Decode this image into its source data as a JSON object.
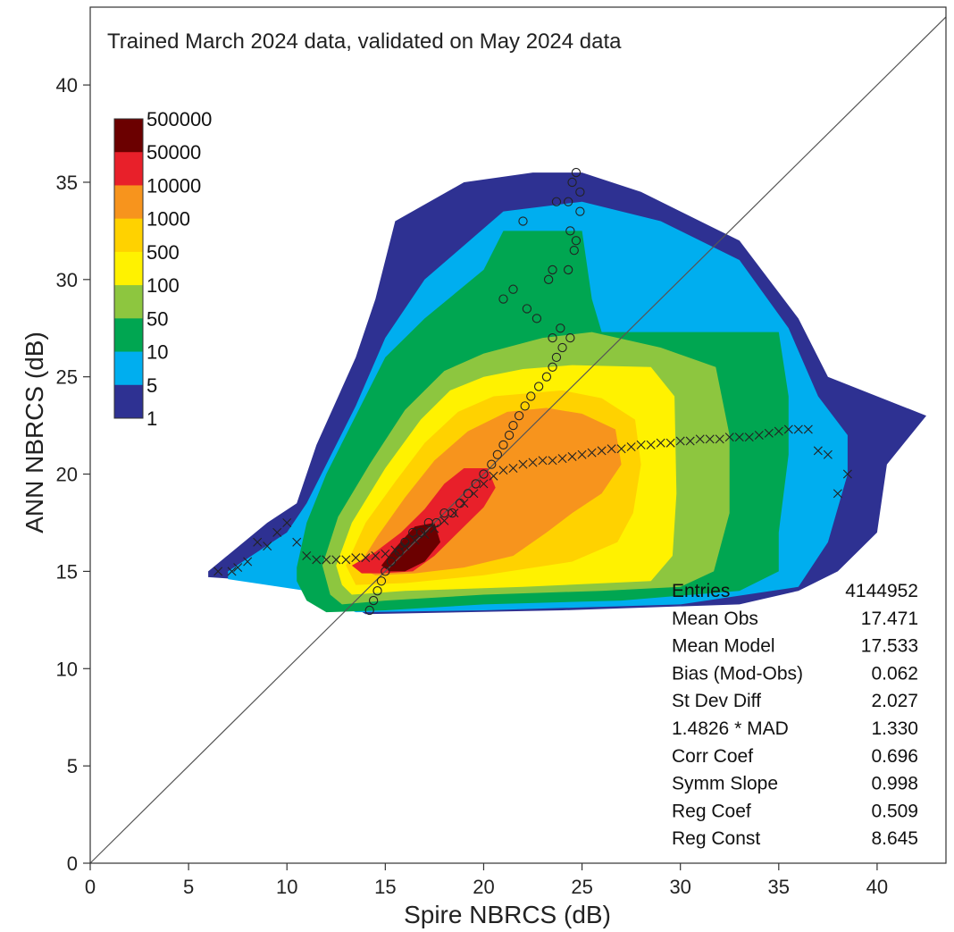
{
  "chart_data": {
    "type": "heatmap",
    "title": "Trained March 2024 data, validated on May 2024 data",
    "xlabel": "Spire NBRCS (dB)",
    "ylabel": "ANN NBRCS (dB)",
    "xlim": [
      0,
      43.5
    ],
    "ylim": [
      0,
      44
    ],
    "xticks": [
      0,
      5,
      10,
      15,
      20,
      25,
      30,
      35,
      40
    ],
    "yticks": [
      0,
      5,
      10,
      15,
      20,
      25,
      30,
      35,
      40
    ],
    "colorbar": {
      "labels": [
        "500000",
        "50000",
        "10000",
        "1000",
        "500",
        "100",
        "50",
        "10",
        "5",
        "1"
      ],
      "colors": [
        "#6b0000",
        "#e8202a",
        "#f7941d",
        "#ffd200",
        "#fff200",
        "#8dc63f",
        "#00a651",
        "#00aeef",
        "#2e3192"
      ]
    },
    "identity_line": true,
    "density_regions": [
      {
        "level": 1,
        "color": "#2e3192",
        "polygon": [
          [
            6,
            15
          ],
          [
            9,
            17.5
          ],
          [
            10.5,
            18.5
          ],
          [
            11.5,
            21.5
          ],
          [
            13.5,
            26
          ],
          [
            14.5,
            29
          ],
          [
            15.5,
            33
          ],
          [
            19,
            35
          ],
          [
            22.5,
            35.5
          ],
          [
            25,
            35.5
          ],
          [
            28,
            34.5
          ],
          [
            33,
            32
          ],
          [
            36,
            28
          ],
          [
            37.5,
            25
          ],
          [
            40,
            24
          ],
          [
            42.5,
            23
          ],
          [
            40.5,
            20.5
          ],
          [
            40,
            17
          ],
          [
            38,
            15
          ],
          [
            36,
            14
          ],
          [
            33,
            13.3
          ],
          [
            24,
            13
          ],
          [
            14,
            12.8
          ],
          [
            12,
            14
          ],
          [
            9,
            14.5
          ],
          [
            6,
            14.7
          ]
        ]
      },
      {
        "level": 5,
        "color": "#00aeef",
        "polygon": [
          [
            7,
            15
          ],
          [
            10,
            17
          ],
          [
            11,
            18.5
          ],
          [
            12,
            20.5
          ],
          [
            13.5,
            23.5
          ],
          [
            15,
            27
          ],
          [
            17,
            30
          ],
          [
            21,
            33.5
          ],
          [
            25,
            34
          ],
          [
            29,
            33
          ],
          [
            33,
            31
          ],
          [
            35.5,
            27.5
          ],
          [
            37,
            24
          ],
          [
            38.5,
            22
          ],
          [
            38.5,
            20
          ],
          [
            37.5,
            16.5
          ],
          [
            36,
            14.2
          ],
          [
            30,
            13.3
          ],
          [
            20,
            13
          ],
          [
            13.5,
            12.9
          ],
          [
            11,
            14
          ],
          [
            7,
            14.6
          ]
        ]
      },
      {
        "level": 10,
        "color": "#00a651",
        "polygon": [
          [
            10.5,
            15.2
          ],
          [
            11,
            17.5
          ],
          [
            12,
            20
          ],
          [
            13.5,
            23
          ],
          [
            15,
            26
          ],
          [
            17,
            28
          ],
          [
            20,
            30.5
          ],
          [
            21,
            32.5
          ],
          [
            25,
            32.5
          ],
          [
            25.5,
            29
          ],
          [
            26,
            27.3
          ],
          [
            30,
            27.3
          ],
          [
            35,
            27.3
          ],
          [
            35.5,
            24
          ],
          [
            35.5,
            21
          ],
          [
            35,
            17
          ],
          [
            35,
            15
          ],
          [
            33,
            14
          ],
          [
            27,
            13.5
          ],
          [
            20,
            13.3
          ],
          [
            15,
            13
          ],
          [
            12,
            12.9
          ],
          [
            11,
            13.5
          ],
          [
            10.5,
            14.5
          ]
        ]
      },
      {
        "level": 50,
        "color": "#8dc63f",
        "polygon": [
          [
            11.8,
            15.3
          ],
          [
            12.6,
            17.8
          ],
          [
            14.2,
            20.5
          ],
          [
            16,
            23.3
          ],
          [
            18,
            25.3
          ],
          [
            20,
            26.2
          ],
          [
            23,
            27
          ],
          [
            25.5,
            27.3
          ],
          [
            29,
            26.5
          ],
          [
            31.8,
            25.5
          ],
          [
            32.5,
            22
          ],
          [
            32.5,
            18
          ],
          [
            31.7,
            15
          ],
          [
            30,
            14.2
          ],
          [
            26,
            14
          ],
          [
            20,
            13.8
          ],
          [
            15,
            13.5
          ],
          [
            12.8,
            13.3
          ],
          [
            12.2,
            13.8
          ]
        ]
      },
      {
        "level": 100,
        "color": "#fff200",
        "polygon": [
          [
            12.5,
            15.3
          ],
          [
            13.3,
            17.5
          ],
          [
            15,
            20.3
          ],
          [
            16.8,
            22.8
          ],
          [
            18.3,
            24.3
          ],
          [
            20,
            25
          ],
          [
            22,
            25.4
          ],
          [
            24.5,
            25.6
          ],
          [
            28.5,
            25.5
          ],
          [
            29.7,
            24
          ],
          [
            29.8,
            19
          ],
          [
            29.6,
            15.8
          ],
          [
            28.5,
            14.5
          ],
          [
            22,
            14.2
          ],
          [
            16,
            14
          ],
          [
            13.3,
            13.8
          ],
          [
            12.8,
            14.3
          ]
        ]
      },
      {
        "level": 500,
        "color": "#ffd200",
        "polygon": [
          [
            13,
            15.3
          ],
          [
            14,
            17.5
          ],
          [
            15.5,
            19.6
          ],
          [
            17,
            21.6
          ],
          [
            18.7,
            23.2
          ],
          [
            20.5,
            24
          ],
          [
            24,
            24.3
          ],
          [
            26,
            23.9
          ],
          [
            27.7,
            22.8
          ],
          [
            28,
            20.5
          ],
          [
            27.6,
            18
          ],
          [
            26.8,
            16.5
          ],
          [
            24.5,
            15.5
          ],
          [
            20,
            14.8
          ],
          [
            16,
            14.4
          ],
          [
            13.5,
            14.3
          ]
        ]
      },
      {
        "level": 1000,
        "color": "#f7941d",
        "polygon": [
          [
            13.6,
            15.2
          ],
          [
            14.6,
            16.8
          ],
          [
            16,
            18.8
          ],
          [
            17.5,
            20.7
          ],
          [
            19.2,
            22.2
          ],
          [
            21.2,
            23.2
          ],
          [
            23.2,
            23.4
          ],
          [
            25,
            23.1
          ],
          [
            26.7,
            22.3
          ],
          [
            27,
            20.5
          ],
          [
            26,
            19
          ],
          [
            24.5,
            18
          ],
          [
            23.2,
            17
          ],
          [
            21.5,
            15.8
          ],
          [
            19,
            15.2
          ],
          [
            16.5,
            14.9
          ],
          [
            14.5,
            14.8
          ]
        ]
      },
      {
        "level": 10000,
        "color": "#e8202a",
        "polygon": [
          [
            13.3,
            15.3
          ],
          [
            14.5,
            16
          ],
          [
            15.8,
            17
          ],
          [
            17,
            18.2
          ],
          [
            18,
            19.5
          ],
          [
            19,
            20.3
          ],
          [
            20.2,
            20.3
          ],
          [
            20.6,
            19.3
          ],
          [
            20,
            18.3
          ],
          [
            18.7,
            17
          ],
          [
            17.5,
            15.8
          ],
          [
            16.4,
            15
          ],
          [
            14.8,
            14.9
          ],
          [
            13.8,
            14.9
          ]
        ]
      },
      {
        "level": 50000,
        "color": "#6b0000",
        "polygon": [
          [
            14.8,
            15.3
          ],
          [
            15.5,
            16.2
          ],
          [
            16.5,
            17.3
          ],
          [
            17.5,
            17.5
          ],
          [
            17.8,
            16.5
          ],
          [
            17,
            15.5
          ],
          [
            16,
            15
          ],
          [
            15.2,
            15
          ]
        ]
      }
    ],
    "series": [
      {
        "marker": "circle",
        "points": [
          [
            14.2,
            13
          ],
          [
            14.4,
            13.5
          ],
          [
            14.6,
            14
          ],
          [
            14.8,
            14.5
          ],
          [
            15,
            15
          ],
          [
            15.3,
            15.5
          ],
          [
            15.7,
            16
          ],
          [
            16,
            16.5
          ],
          [
            16.4,
            17
          ],
          [
            16.8,
            17
          ],
          [
            17.2,
            17.5
          ],
          [
            17.6,
            17.5
          ],
          [
            18,
            18
          ],
          [
            18.4,
            18
          ],
          [
            18.8,
            18.5
          ],
          [
            19.2,
            19
          ],
          [
            19.6,
            19.5
          ],
          [
            20,
            20
          ],
          [
            20.4,
            20.5
          ],
          [
            20.7,
            21
          ],
          [
            21,
            21.5
          ],
          [
            21.3,
            22
          ],
          [
            21.5,
            22.5
          ],
          [
            21.8,
            23
          ],
          [
            22.1,
            23.5
          ],
          [
            22.4,
            24
          ],
          [
            22.8,
            24.5
          ],
          [
            23.2,
            25
          ],
          [
            23.5,
            25.5
          ],
          [
            23.7,
            26
          ],
          [
            24,
            26.5
          ],
          [
            24.4,
            27
          ],
          [
            23.9,
            27.5
          ],
          [
            23.5,
            27
          ],
          [
            22.7,
            28
          ],
          [
            22.2,
            28.5
          ],
          [
            21,
            29
          ],
          [
            21.5,
            29.5
          ],
          [
            23.3,
            30
          ],
          [
            23.5,
            30.5
          ],
          [
            24.3,
            30.5
          ],
          [
            24.6,
            31.5
          ],
          [
            24.7,
            32
          ],
          [
            24.4,
            32.5
          ],
          [
            22,
            33
          ],
          [
            24.9,
            33.5
          ],
          [
            24.3,
            34
          ],
          [
            23.7,
            34
          ],
          [
            24.9,
            34.5
          ],
          [
            24.5,
            35
          ],
          [
            24.7,
            35.5
          ]
        ]
      },
      {
        "marker": "cross",
        "points": [
          [
            6.5,
            15
          ],
          [
            7.2,
            15
          ],
          [
            7.5,
            15.2
          ],
          [
            8,
            15.5
          ],
          [
            8.5,
            16.5
          ],
          [
            9,
            16.3
          ],
          [
            9.5,
            17
          ],
          [
            10,
            17.5
          ],
          [
            10.5,
            16.5
          ],
          [
            11,
            15.8
          ],
          [
            11.5,
            15.6
          ],
          [
            12,
            15.6
          ],
          [
            12.5,
            15.6
          ],
          [
            13,
            15.6
          ],
          [
            13.5,
            15.7
          ],
          [
            14,
            15.7
          ],
          [
            14.5,
            15.8
          ],
          [
            15,
            15.9
          ],
          [
            15.5,
            16.1
          ],
          [
            16,
            16.3
          ],
          [
            16.5,
            16.6
          ],
          [
            17,
            16.9
          ],
          [
            17.5,
            17.2
          ],
          [
            18,
            17.6
          ],
          [
            18.5,
            18
          ],
          [
            19,
            18.5
          ],
          [
            19.5,
            19
          ],
          [
            20,
            19.5
          ],
          [
            20.5,
            19.9
          ],
          [
            21,
            20.2
          ],
          [
            21.5,
            20.3
          ],
          [
            22,
            20.5
          ],
          [
            22.5,
            20.6
          ],
          [
            23,
            20.7
          ],
          [
            23.5,
            20.7
          ],
          [
            24,
            20.8
          ],
          [
            24.5,
            20.9
          ],
          [
            25,
            21
          ],
          [
            25.5,
            21.1
          ],
          [
            26,
            21.2
          ],
          [
            26.5,
            21.3
          ],
          [
            27,
            21.3
          ],
          [
            27.5,
            21.4
          ],
          [
            28,
            21.5
          ],
          [
            28.5,
            21.5
          ],
          [
            29,
            21.6
          ],
          [
            29.5,
            21.6
          ],
          [
            30,
            21.7
          ],
          [
            30.5,
            21.7
          ],
          [
            31,
            21.8
          ],
          [
            31.5,
            21.8
          ],
          [
            32,
            21.8
          ],
          [
            32.5,
            21.9
          ],
          [
            33,
            21.9
          ],
          [
            33.5,
            21.9
          ],
          [
            34,
            22
          ],
          [
            34.5,
            22.1
          ],
          [
            35,
            22.2
          ],
          [
            35.5,
            22.3
          ],
          [
            36,
            22.3
          ],
          [
            36.5,
            22.3
          ],
          [
            37,
            21.2
          ],
          [
            37.5,
            21
          ],
          [
            38,
            19
          ],
          [
            38.5,
            20
          ]
        ]
      }
    ],
    "stats": [
      {
        "label": "Entries",
        "value": "4144952"
      },
      {
        "label": "Mean Obs",
        "value": "17.471"
      },
      {
        "label": "Mean Model",
        "value": "17.533"
      },
      {
        "label": "Bias (Mod-Obs)",
        "value": "0.062"
      },
      {
        "label": "St Dev Diff",
        "value": "2.027"
      },
      {
        "label": "1.4826 * MAD",
        "value": "1.330"
      },
      {
        "label": "Corr Coef",
        "value": "0.696"
      },
      {
        "label": "Symm Slope",
        "value": "0.998"
      },
      {
        "label": "Reg Coef",
        "value": "0.509"
      },
      {
        "label": "Reg Const",
        "value": "8.645"
      }
    ]
  }
}
